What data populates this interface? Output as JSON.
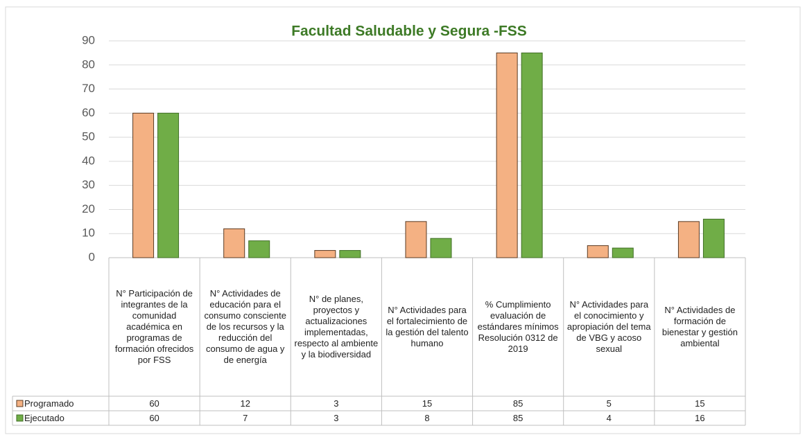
{
  "chart_data": {
    "type": "bar",
    "title": "Facultad Saludable y Segura -FSS",
    "categories": [
      "N° Participación de integrantes de la comunidad académica en programas de formación ofrecidos por FSS",
      "N° Actividades de educación para el consumo consciente de los recursos y la reducción del consumo de agua y de energía",
      "N° de planes, proyectos y actualizaciones implementadas, respecto al ambiente y la biodiversidad",
      "N° Actividades para el fortalecimiento de la gestión del talento humano",
      "% Cumplimiento evaluación de estándares mínimos Resolución 0312 de 2019",
      "N° Actividades para el conocimiento y apropiación del tema de VBG y acoso sexual",
      "N° Actividades de formación de bienestar y gestión ambiental"
    ],
    "series": [
      {
        "name": "Programado",
        "color": "#f4b183",
        "values": [
          60,
          12,
          3,
          15,
          85,
          5,
          15
        ]
      },
      {
        "name": "Ejecutado",
        "color": "#70ad47",
        "values": [
          60,
          7,
          3,
          8,
          85,
          4,
          16
        ]
      }
    ],
    "ylim": [
      0,
      90
    ],
    "yticks": [
      0,
      10,
      20,
      30,
      40,
      50,
      60,
      70,
      80,
      90
    ],
    "grid": true
  }
}
